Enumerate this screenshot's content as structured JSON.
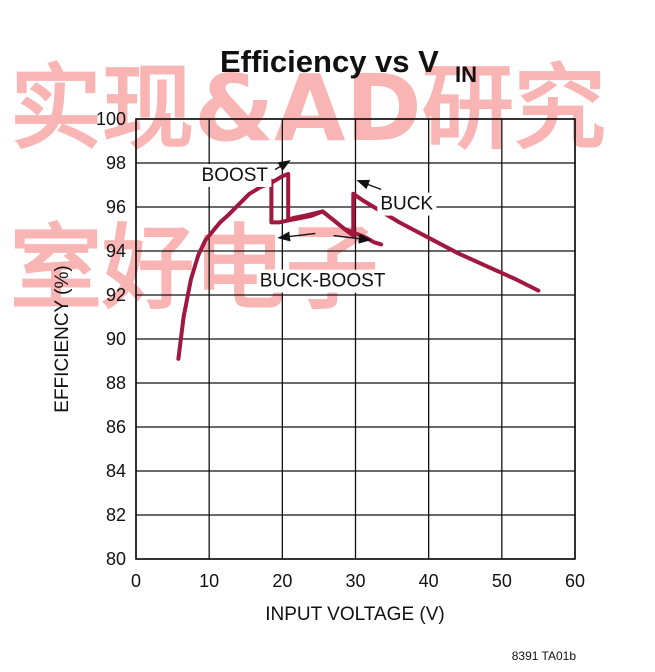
{
  "chart_data": {
    "type": "line",
    "title": "Efficiency vs V",
    "title_subscript": "IN",
    "xlabel": "INPUT VOLTAGE (V)",
    "ylabel": "EFFICIENCY (%)",
    "xlim": [
      0,
      60
    ],
    "ylim": [
      80,
      100
    ],
    "x_ticks": [
      0,
      10,
      20,
      30,
      40,
      50,
      60
    ],
    "y_ticks": [
      80,
      82,
      84,
      86,
      88,
      90,
      92,
      94,
      96,
      98,
      100
    ],
    "grid": true,
    "line_color": "#a0173f",
    "series": [
      {
        "x": [
          5.8,
          6.5,
          7.5,
          8.5,
          9.5,
          10.5,
          11.5,
          12.5,
          14,
          15.5,
          17,
          18.5,
          20,
          20.8,
          20.8,
          21.5,
          23,
          25.5,
          27,
          28.5,
          29.7,
          29.7,
          31,
          32.5,
          33.5,
          33.5,
          36,
          40,
          44,
          48,
          52,
          55
        ],
        "y": [
          89.1,
          91.0,
          92.7,
          93.8,
          94.5,
          94.9,
          95.3,
          95.6,
          96.1,
          96.6,
          96.9,
          97.1,
          97.4,
          97.5,
          95.4,
          95.5,
          95.6,
          95.8,
          95.4,
          95.0,
          94.7,
          96.6,
          96.3,
          96.0,
          95.8,
          95.8,
          95.3,
          94.6,
          93.9,
          93.3,
          92.7,
          92.2
        ]
      },
      {
        "x": [
          18.5,
          18.5,
          19.5,
          21,
          22.5,
          24,
          25.5,
          27,
          28.5,
          30,
          31.5,
          32.5,
          33.5
        ],
        "y": [
          97.2,
          95.3,
          95.3,
          95.4,
          95.5,
          95.6,
          95.8,
          95.4,
          95.0,
          94.8,
          94.6,
          94.4,
          94.3
        ]
      }
    ],
    "annotations": [
      {
        "text": "BOOST",
        "x": 13.5,
        "y": 97.5,
        "arrow_from": [
          19.0,
          97.7
        ],
        "arrow_to": [
          21.0,
          98.1
        ]
      },
      {
        "text": "BUCK",
        "x": 37.0,
        "y": 96.2,
        "arrow_from": [
          33.5,
          96.8
        ],
        "arrow_to": [
          30.3,
          97.2
        ]
      },
      {
        "text": "BUCK-BOOST",
        "x": 25.5,
        "y": 92.7,
        "arrow_from": [
          24.5,
          94.8
        ],
        "arrow_to": [
          19.5,
          94.6
        ],
        "arrow2_from": [
          27.0,
          94.7
        ],
        "arrow2_to": [
          32.0,
          94.5
        ]
      }
    ]
  },
  "figure_id": "8391 TA01b",
  "watermark": "实现&AD研究室好电子"
}
